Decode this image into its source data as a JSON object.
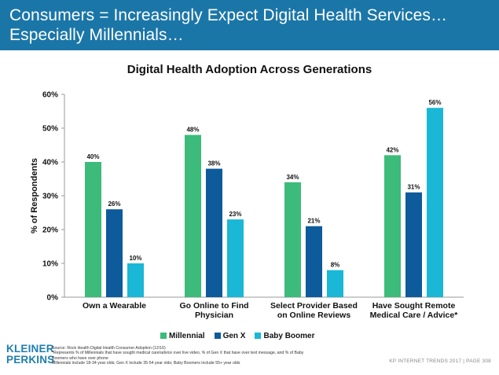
{
  "header": {
    "title_line1": "Consumers = Increasingly Expect Digital Health Services…",
    "title_line2": "Especially Millennials…"
  },
  "chart_data": {
    "type": "bar",
    "title": "Digital Health Adoption Across Generations",
    "ylabel": "% of Respondents",
    "xlabel": "",
    "ylim": [
      0,
      60
    ],
    "yticks": [
      "0%",
      "10%",
      "20%",
      "30%",
      "40%",
      "50%",
      "60%"
    ],
    "categories": [
      [
        "Own a Wearable"
      ],
      [
        "Go Online to Find",
        "Physician"
      ],
      [
        "Select Provider Based",
        "on Online Reviews"
      ],
      [
        "Have Sought Remote",
        "Medical Care / Advice*"
      ]
    ],
    "series": [
      {
        "name": "Millennial",
        "color": "#3dbb7a",
        "values": [
          40,
          48,
          34,
          42
        ]
      },
      {
        "name": "Gen X",
        "color": "#0d5b9b",
        "values": [
          26,
          38,
          21,
          31
        ]
      },
      {
        "name": "Baby Boomer",
        "color": "#1ab7d6",
        "values": [
          10,
          23,
          8,
          56
        ]
      }
    ],
    "grid": false,
    "legend_position": "bottom"
  },
  "logo": {
    "line1": "KLEINER",
    "line2": "PERKINS"
  },
  "source": {
    "line1": "Source: Rock Health Digital Health Consumer Adoption (12/16)",
    "line2": "*Represents % of Millennials that have sought medical care/advice over live video, % of Gen X that have over text message, and % of Baby",
    "line3": "Boomers who have over phone",
    "line4": "Millennials include 18-34 year olds; Gen X include 35-54 year olds; Baby Boomers include 55+ year olds"
  },
  "footer": {
    "text": "KP INTERNET TRENDS 2017  |  PAGE 308"
  }
}
